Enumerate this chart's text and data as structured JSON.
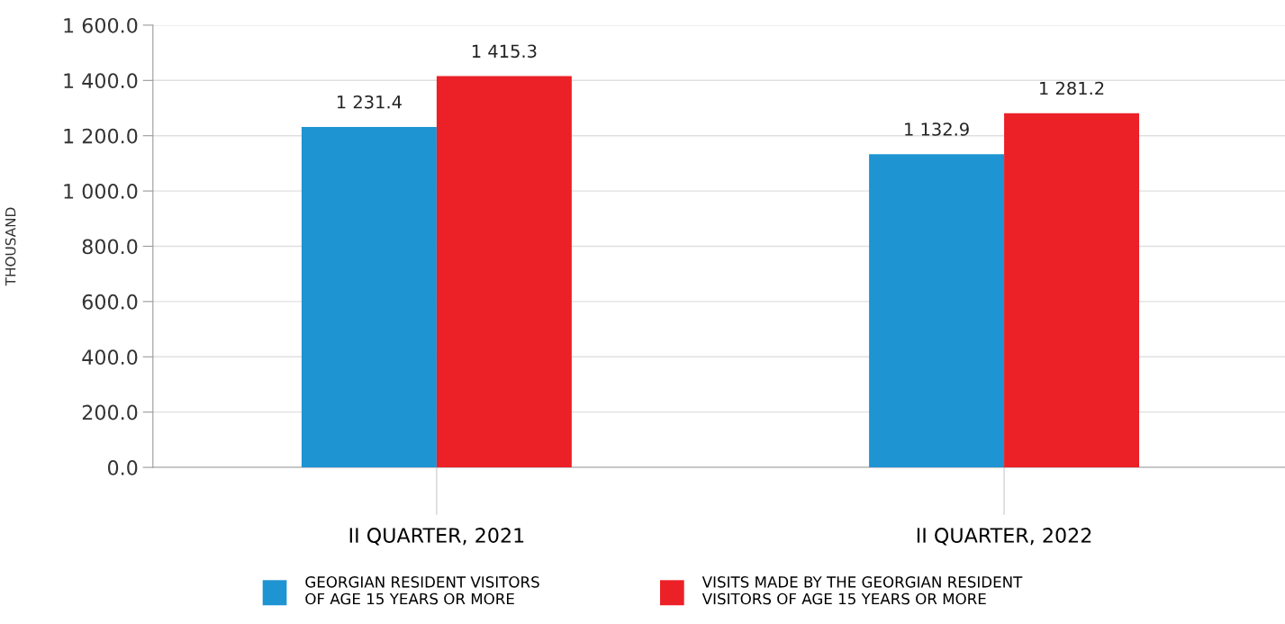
{
  "chart_data": {
    "type": "bar",
    "ylabel": "THOUSAND",
    "categories": [
      "II QUARTER, 2021",
      "II QUARTER, 2022"
    ],
    "series": [
      {
        "name": "GEORGIAN RESIDENT VISITORS\nOF AGE 15 YEARS OR MORE",
        "color": "#1e94d2",
        "values": [
          1231.4,
          1132.9
        ],
        "value_labels": [
          "1 231.4",
          "1 132.9"
        ]
      },
      {
        "name": "VISITS MADE BY THE GEORGIAN RESIDENT\nVISITORS OF AGE 15 YEARS OR MORE",
        "color": "#ec2027",
        "values": [
          1415.3,
          1281.2
        ],
        "value_labels": [
          "1 415.3",
          "1 281.2"
        ]
      }
    ],
    "ylim": [
      0,
      1600
    ],
    "yticks": [
      {
        "value": 0,
        "label": "0.0"
      },
      {
        "value": 200,
        "label": "200.0"
      },
      {
        "value": 400,
        "label": "400.0"
      },
      {
        "value": 600,
        "label": "600.0"
      },
      {
        "value": 800,
        "label": "800.0"
      },
      {
        "value": 1000,
        "label": "1 000.0"
      },
      {
        "value": 1200,
        "label": "1 200.0"
      },
      {
        "value": 1400,
        "label": "1 400.0"
      },
      {
        "value": 1600,
        "label": "1 600.0"
      }
    ],
    "grid": "y",
    "legend": "bottom"
  }
}
